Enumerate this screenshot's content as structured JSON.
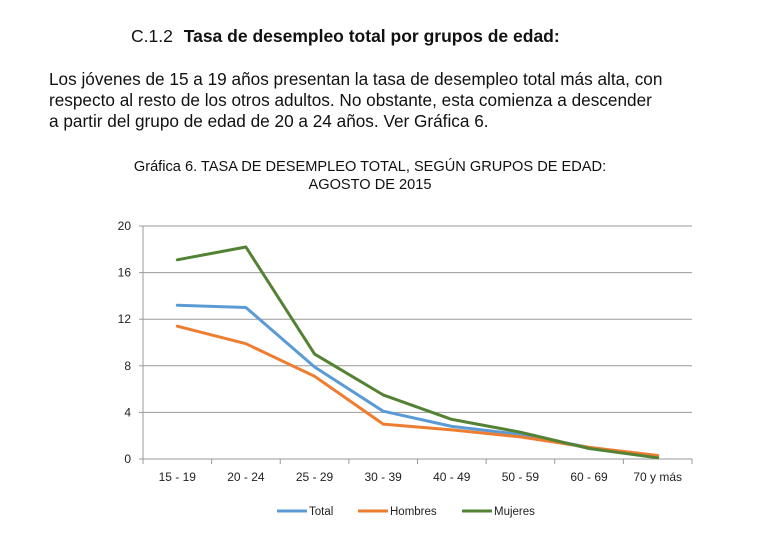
{
  "section": {
    "number": "C.1.2",
    "title": "Tasa de desempleo total por grupos de edad:"
  },
  "paragraph": {
    "lines": [
      "Los jóvenes de 15 a 19 años presentan la tasa de desempleo total más alta, con",
      "respecto al resto de los otros adultos. No obstante, esta comienza a descender",
      "a partir del grupo de edad de 20 a 24 años.  Ver Gráfica 6."
    ]
  },
  "chart_title": {
    "line1": "Gráfica 6.  TASA DE DESEMPLEO TOTAL, SEGÚN GRUPOS DE EDAD:",
    "line2": "AGOSTO DE 2015"
  },
  "chart_data": {
    "type": "line",
    "title": "Gráfica 6. TASA DE DESEMPLEO TOTAL, SEGÚN GRUPOS DE EDAD: AGOSTO DE 2015",
    "xlabel": "",
    "ylabel": "",
    "categories": [
      "15 - 19",
      "20 - 24",
      "25 - 29",
      "30 - 39",
      "40 - 49",
      "50 - 59",
      "60 - 69",
      "70 y más"
    ],
    "yticks": [
      0,
      4,
      8,
      12,
      16,
      20
    ],
    "ylim": [
      0,
      20
    ],
    "grid": true,
    "legend_position": "bottom",
    "series": [
      {
        "name": "Total",
        "color": "#5b9bd5",
        "values": [
          13.2,
          13.0,
          7.9,
          4.1,
          2.8,
          2.1,
          1.0,
          0.2
        ]
      },
      {
        "name": "Hombres",
        "color": "#ed7d31",
        "values": [
          11.4,
          9.9,
          7.1,
          3.0,
          2.5,
          1.9,
          1.0,
          0.3
        ]
      },
      {
        "name": "Mujeres",
        "color": "#548235",
        "values": [
          17.1,
          18.2,
          9.0,
          5.5,
          3.4,
          2.3,
          0.9,
          0.1
        ]
      }
    ]
  }
}
